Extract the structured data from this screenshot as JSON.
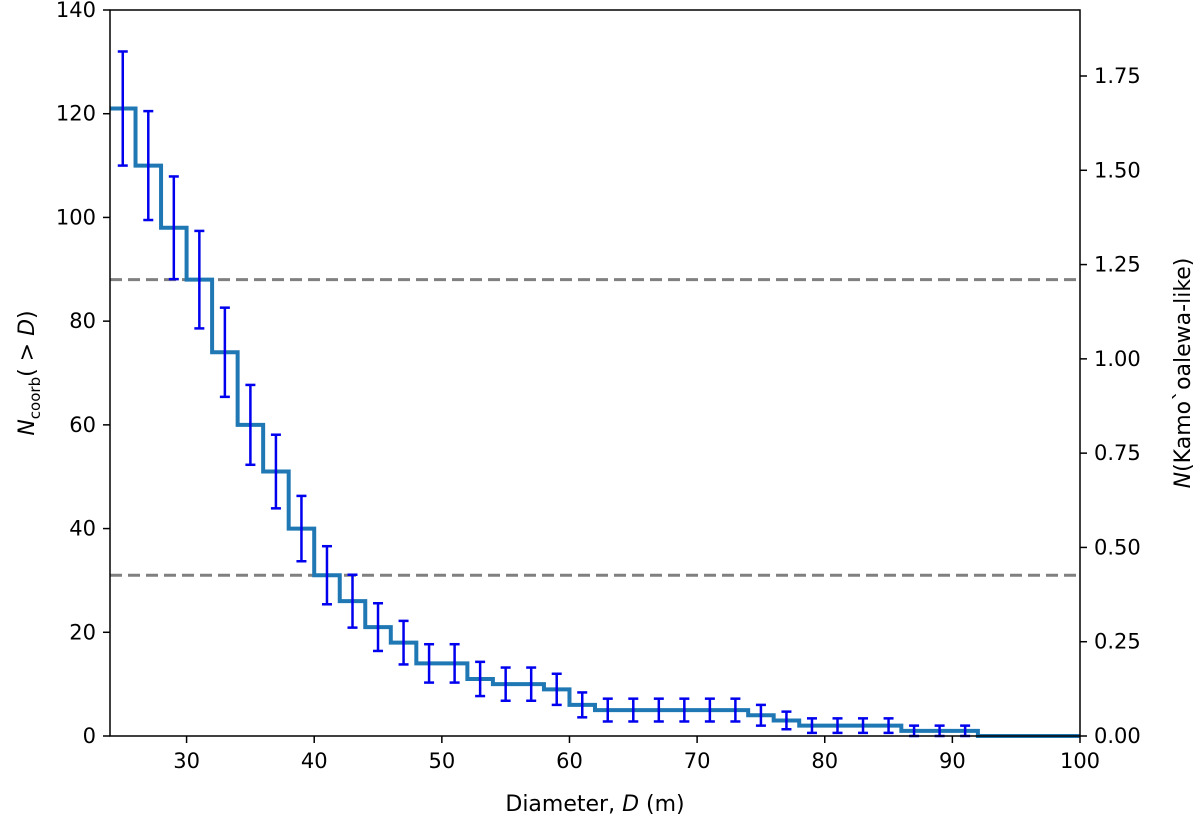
{
  "chart_data": {
    "type": "line",
    "step": "post",
    "xlabel": {
      "prefix": "Diameter, ",
      "italic": "D",
      "suffix": " (m)"
    },
    "ylabel_left": {
      "symbol": "N",
      "subscript": "coorb",
      "suffix": "( > ",
      "italic": "D",
      "close": ")"
    },
    "ylabel_right": {
      "symbol": "N",
      "text": "(Kamo`oalewa-like)"
    },
    "xlim": [
      24,
      100
    ],
    "ylim_left": [
      0,
      140
    ],
    "ylim_right": [
      0,
      1.925
    ],
    "x_ticks": [
      "30",
      "40",
      "50",
      "60",
      "70",
      "80",
      "90",
      "100"
    ],
    "x_tick_values": [
      30,
      40,
      50,
      60,
      70,
      80,
      90,
      100
    ],
    "y_left_ticks": [
      "0",
      "20",
      "40",
      "60",
      "80",
      "100",
      "120",
      "140"
    ],
    "y_left_tick_values": [
      0,
      20,
      40,
      60,
      80,
      100,
      120,
      140
    ],
    "y_right_ticks": [
      "0.00",
      "0.25",
      "0.50",
      "0.75",
      "1.00",
      "1.25",
      "1.50",
      "1.75"
    ],
    "y_right_tick_values": [
      0,
      0.25,
      0.5,
      0.75,
      1.0,
      1.25,
      1.5,
      1.75
    ],
    "series": [
      {
        "x": [
          24,
          26,
          28,
          30,
          32,
          34,
          36,
          38,
          40,
          42,
          44,
          46,
          48,
          50,
          52,
          54,
          56,
          58,
          60,
          62,
          64,
          66,
          68,
          70,
          72,
          74,
          76,
          78,
          80,
          82,
          84,
          86,
          88,
          90,
          92,
          100
        ],
        "y": [
          121,
          110,
          98,
          88,
          74,
          60,
          51,
          40,
          31,
          26,
          21,
          18,
          14,
          14,
          11,
          10,
          10,
          9,
          6,
          5,
          5,
          5,
          5,
          5,
          5,
          4,
          3,
          2,
          2,
          2,
          2,
          1,
          1,
          1,
          0,
          0
        ],
        "color": "#1f77b4"
      }
    ],
    "error_bars": {
      "x": [
        25,
        27,
        29,
        31,
        33,
        35,
        37,
        39,
        41,
        43,
        45,
        47,
        49,
        51,
        53,
        55,
        57,
        59,
        61,
        63,
        65,
        67,
        69,
        71,
        73,
        75,
        77,
        79,
        81,
        83,
        85,
        87,
        89,
        91
      ],
      "y": [
        121,
        110,
        98,
        88,
        74,
        60,
        51,
        40,
        31,
        26,
        21,
        18,
        14,
        14,
        11,
        10,
        10,
        9,
        6,
        5,
        5,
        5,
        5,
        5,
        5,
        4,
        3,
        2,
        2,
        2,
        2,
        1,
        1,
        1
      ],
      "err": [
        11,
        10.5,
        9.9,
        9.4,
        8.6,
        7.7,
        7.1,
        6.3,
        5.6,
        5.1,
        4.6,
        4.2,
        3.7,
        3.7,
        3.3,
        3.2,
        3.2,
        3.0,
        2.4,
        2.2,
        2.2,
        2.2,
        2.2,
        2.2,
        2.2,
        2.0,
        1.7,
        1.4,
        1.4,
        1.4,
        1.4,
        1.0,
        1.0,
        1.0
      ],
      "color": "#0000ee"
    },
    "hlines": [
      {
        "y": 88,
        "color": "#808080",
        "style": "dashed"
      },
      {
        "y": 31,
        "color": "#808080",
        "style": "dashed"
      }
    ]
  }
}
